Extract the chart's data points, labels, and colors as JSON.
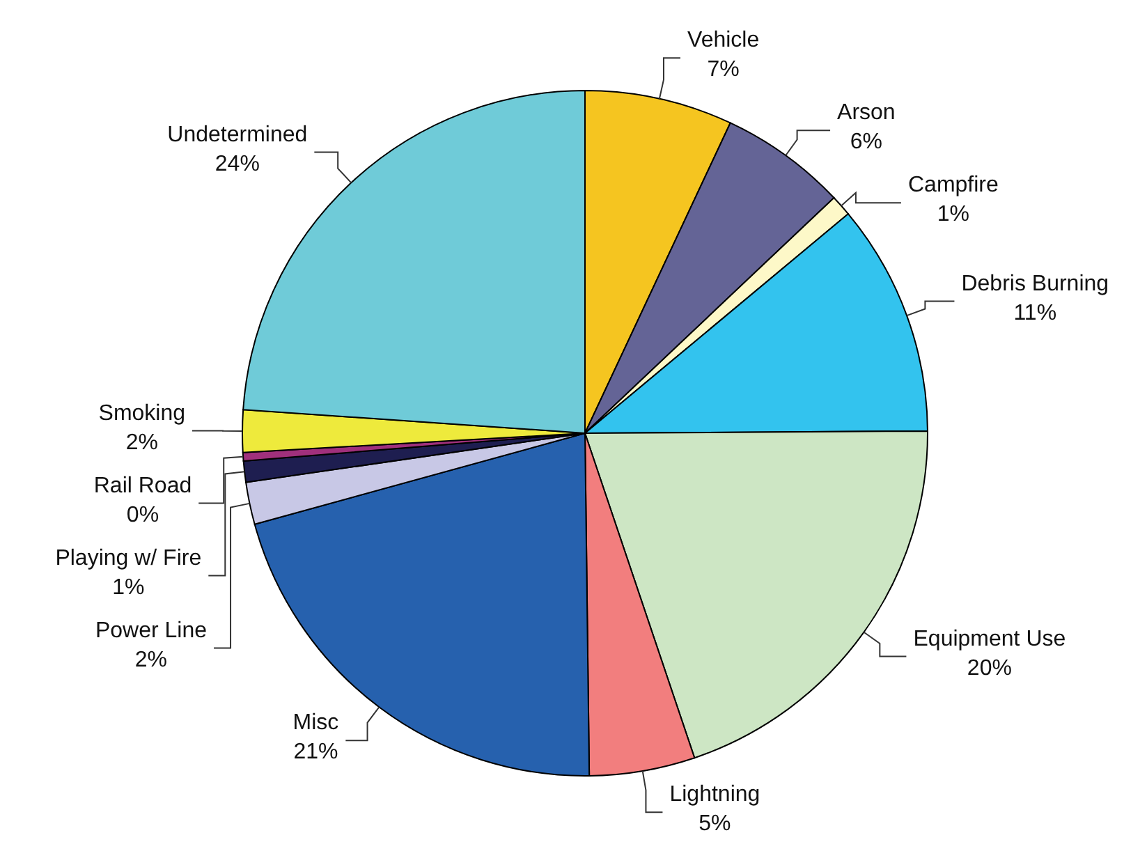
{
  "chart_data": {
    "type": "pie",
    "categories": [
      "Vehicle",
      "Arson",
      "Campfire",
      "Debris Burning",
      "Equipment Use",
      "Lightning",
      "Misc",
      "Power Line",
      "Playing w/ Fire",
      "Rail Road",
      "Smoking",
      "Undetermined"
    ],
    "values": [
      7,
      6,
      1,
      11,
      20,
      5,
      21,
      2,
      1,
      0.4,
      2,
      24
    ],
    "value_labels": [
      "7%",
      "6%",
      "1%",
      "11%",
      "20%",
      "5%",
      "21%",
      "2%",
      "1%",
      "0%",
      "2%",
      "24%"
    ],
    "colors": [
      "#f5c520",
      "#646496",
      "#fdf8c8",
      "#33c3ee",
      "#cde6c4",
      "#f27e7e",
      "#2661ae",
      "#c8c8e6",
      "#1e1e50",
      "#a0307c",
      "#eeea3c",
      "#6fcbd8"
    ],
    "legend": false
  }
}
